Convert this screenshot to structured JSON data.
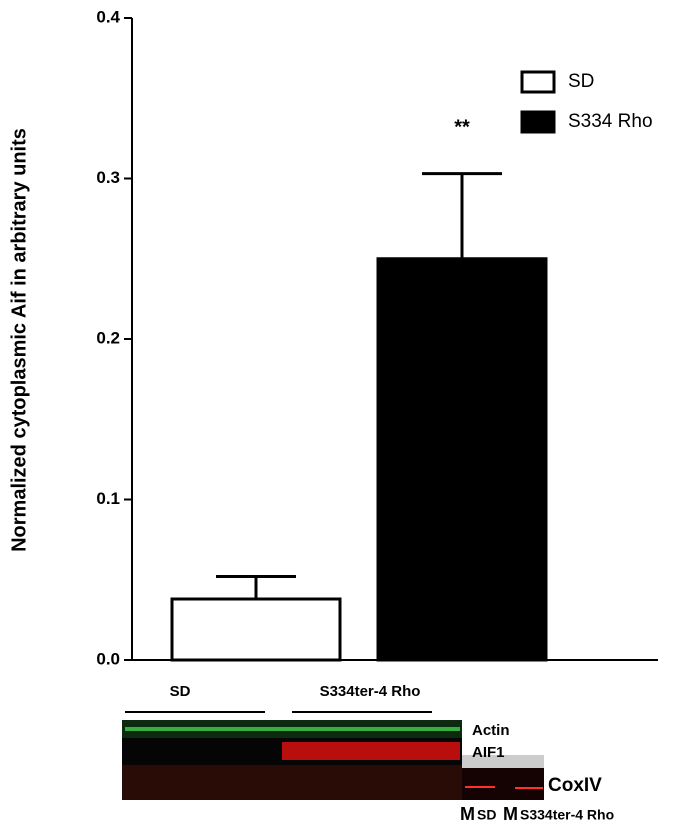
{
  "chart_data": {
    "type": "bar",
    "y_label": "Normalized cytoplasmic Aif in arbitrary units",
    "series": [
      {
        "name": "SD",
        "color": "#ffffff",
        "values": [
          0.038
        ],
        "errors": [
          0.014
        ]
      },
      {
        "name": "S334 Rho",
        "color": "#000000",
        "values": [
          0.25
        ],
        "errors": [
          0.053
        ]
      }
    ],
    "ylim": [
      0,
      0.4
    ],
    "yticks": [
      {
        "value": 0,
        "label": "0.0"
      },
      0.1,
      0.2,
      0.3,
      0.4
    ],
    "annotation": "**",
    "legend": "upper right",
    "grid": false
  },
  "blot": {
    "group_labels": [
      "SD",
      "S334ter-4 Rho"
    ],
    "band_labels": [
      "Actin",
      "AIF1",
      "CoxIV"
    ],
    "lane_labels": [
      "M",
      "SD",
      "M",
      "S334ter-4 Rho"
    ]
  }
}
